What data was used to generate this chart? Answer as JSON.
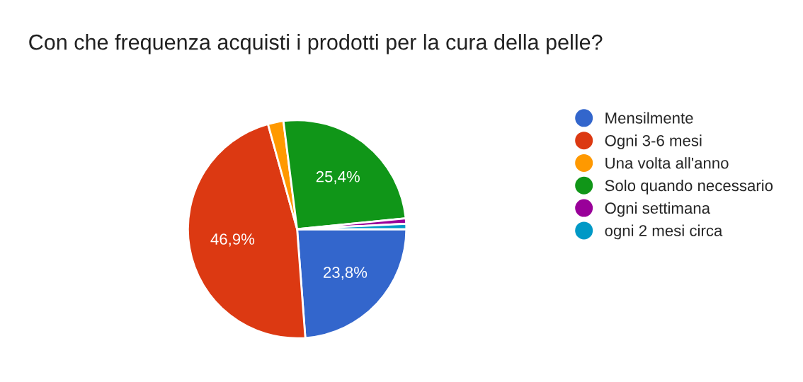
{
  "chart_data": {
    "type": "pie",
    "title": "Con che frequenza acquisti i prodotti per la cura della pelle?",
    "categories": [
      "Mensilmente",
      "Ogni 3-6 mesi",
      "Una volta all'anno",
      "Solo quando necessario",
      "Ogni settimana",
      "ogni 2 mesi circa"
    ],
    "values": [
      23.8,
      46.9,
      2.3,
      25.4,
      0.8,
      0.8
    ],
    "colors": [
      "#3366cc",
      "#dc3912",
      "#ff9900",
      "#109618",
      "#990099",
      "#0099c6"
    ],
    "value_labels": [
      "23,8%",
      "46,9%",
      null,
      "25,4%",
      null,
      null
    ],
    "legend": "right"
  }
}
